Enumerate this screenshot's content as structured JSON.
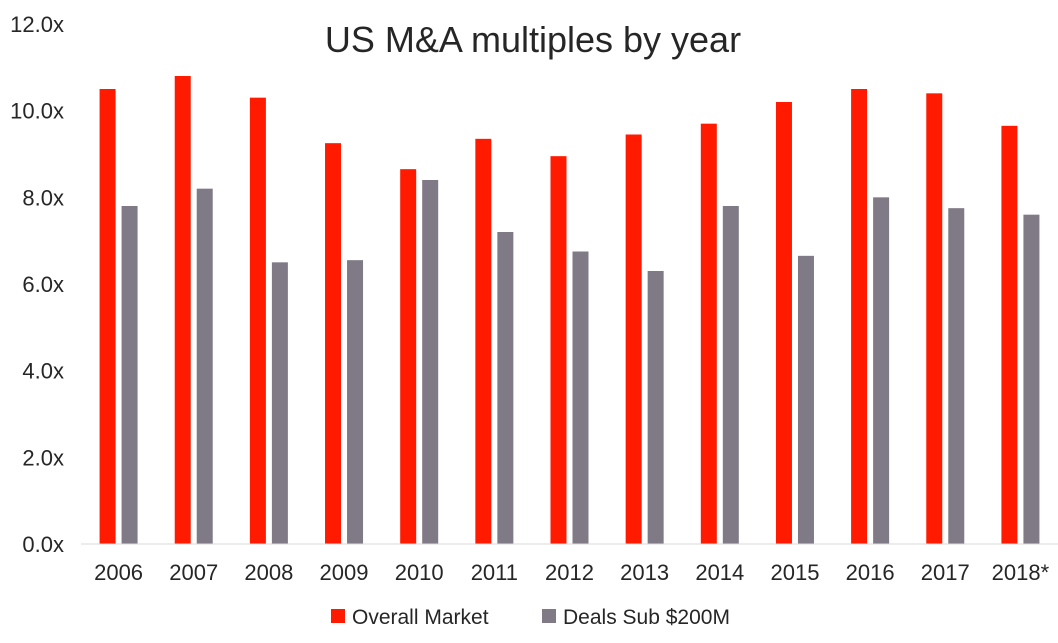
{
  "chart_data": {
    "type": "bar",
    "title": "US M&A multiples by year",
    "xlabel": "",
    "ylabel": "",
    "categories": [
      "2006",
      "2007",
      "2008",
      "2009",
      "2010",
      "2011",
      "2012",
      "2013",
      "2014",
      "2015",
      "2016",
      "2017",
      "2018*"
    ],
    "series": [
      {
        "name": "Overall Market",
        "color": "#ff1a00",
        "values": [
          10.5,
          10.8,
          10.3,
          9.25,
          8.65,
          9.35,
          8.95,
          9.45,
          9.7,
          10.2,
          10.5,
          10.4,
          9.65
        ]
      },
      {
        "name": "Deals Sub $200M",
        "color": "#7f7a86",
        "values": [
          7.8,
          8.2,
          6.5,
          6.55,
          8.4,
          7.2,
          6.75,
          6.3,
          7.8,
          6.65,
          8.0,
          7.75,
          7.6
        ]
      }
    ],
    "ylim": [
      0,
      12
    ],
    "yticks": [
      "0.0x",
      "2.0x",
      "4.0x",
      "6.0x",
      "8.0x",
      "10.0x",
      "12.0x"
    ],
    "grid": false,
    "legend": "bottom"
  }
}
